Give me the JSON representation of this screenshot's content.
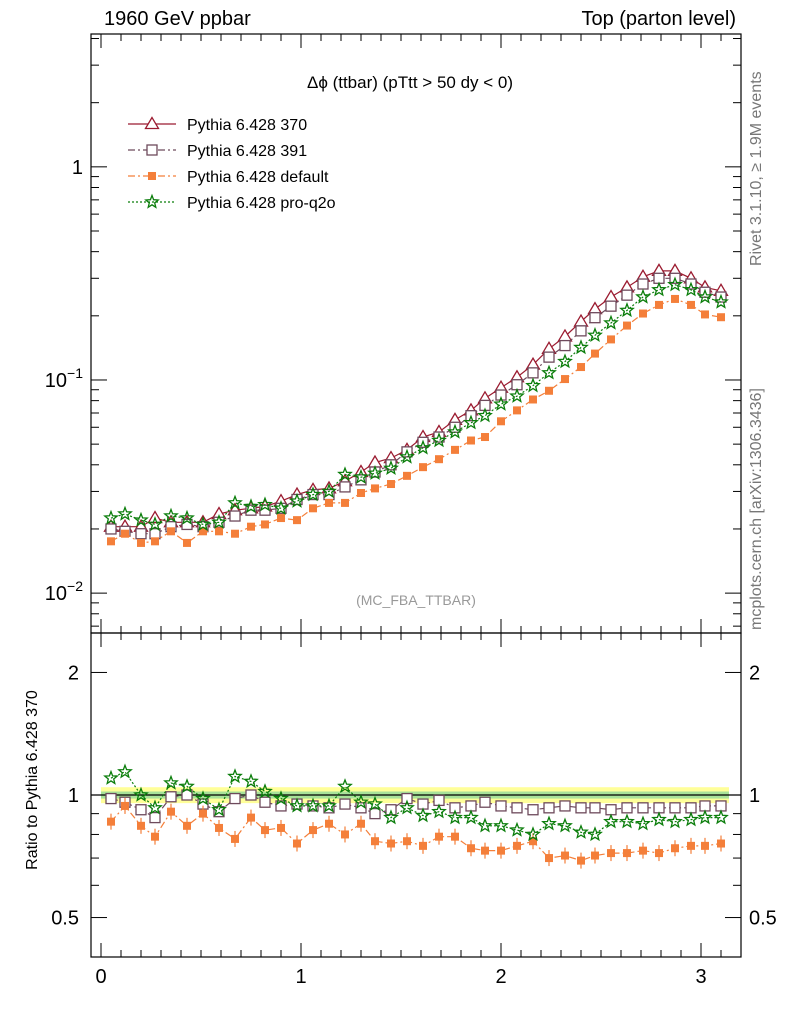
{
  "header": {
    "left": "1960 GeV ppbar",
    "right": "Top (parton level)"
  },
  "side_labels": {
    "rivet": "Rivet 3.1.10, ≥ 1.9M events",
    "mcplots": "mcplots.cern.ch [arXiv:1306.3436]"
  },
  "chart_data": [
    {
      "type": "line",
      "panel": "main",
      "title": "Δϕ (ttbar) (pTtt > 50 dy < 0)",
      "watermark": "(MC_FBA_TTBAR)",
      "xlim": [
        -0.05,
        3.2
      ],
      "ylim": [
        0.0065,
        4.2
      ],
      "yscale": "log",
      "xticks": [
        "0",
        "1",
        "2",
        "3"
      ],
      "yticks": [
        "10^-2",
        "10^-1",
        "1"
      ],
      "legend_position": "top-left",
      "x": [
        0.05,
        0.12,
        0.2,
        0.27,
        0.35,
        0.43,
        0.51,
        0.59,
        0.67,
        0.75,
        0.82,
        0.9,
        0.98,
        1.06,
        1.14,
        1.22,
        1.3,
        1.37,
        1.45,
        1.53,
        1.61,
        1.69,
        1.77,
        1.85,
        1.92,
        2.0,
        2.08,
        2.16,
        2.24,
        2.32,
        2.4,
        2.47,
        2.55,
        2.63,
        2.71,
        2.79,
        2.87,
        2.95,
        3.02,
        3.1
      ],
      "series": [
        {
          "name": "Pythia 6.428 370",
          "color": "#9b1b30",
          "marker": "triangle-open",
          "dash": "solid",
          "values": [
            0.0205,
            0.0205,
            0.0205,
            0.0225,
            0.0215,
            0.0215,
            0.0215,
            0.0235,
            0.0245,
            0.025,
            0.0255,
            0.027,
            0.029,
            0.0305,
            0.031,
            0.0335,
            0.037,
            0.041,
            0.043,
            0.047,
            0.054,
            0.057,
            0.065,
            0.072,
            0.082,
            0.092,
            0.103,
            0.118,
            0.14,
            0.16,
            0.188,
            0.215,
            0.245,
            0.272,
            0.305,
            0.325,
            0.325,
            0.3,
            0.272,
            0.262
          ]
        },
        {
          "name": "Pythia 6.428 391",
          "color": "#6e4a5c",
          "marker": "square-open",
          "dash": "dashdot",
          "values": [
            0.02,
            0.0195,
            0.019,
            0.019,
            0.0205,
            0.021,
            0.0205,
            0.0215,
            0.023,
            0.0245,
            0.0245,
            0.025,
            0.0275,
            0.029,
            0.029,
            0.0315,
            0.034,
            0.037,
            0.04,
            0.046,
            0.051,
            0.054,
            0.06,
            0.068,
            0.076,
            0.085,
            0.095,
            0.108,
            0.128,
            0.145,
            0.17,
            0.196,
            0.222,
            0.25,
            0.282,
            0.3,
            0.3,
            0.282,
            0.258,
            0.245
          ]
        },
        {
          "name": "Pythia 6.428 default",
          "color": "#f47f3a",
          "marker": "square-filled",
          "dash": "dashdot",
          "values": [
            0.0175,
            0.019,
            0.0172,
            0.0175,
            0.0195,
            0.0172,
            0.0195,
            0.0195,
            0.019,
            0.0205,
            0.021,
            0.0225,
            0.022,
            0.025,
            0.0265,
            0.0265,
            0.0295,
            0.031,
            0.0325,
            0.0355,
            0.039,
            0.0425,
            0.047,
            0.052,
            0.054,
            0.064,
            0.072,
            0.081,
            0.089,
            0.101,
            0.115,
            0.133,
            0.155,
            0.18,
            0.205,
            0.225,
            0.24,
            0.225,
            0.203,
            0.197
          ]
        },
        {
          "name": "Pythia 6.428 pro-q2o",
          "color": "#0a7d0a",
          "marker": "star",
          "dash": "dotted",
          "values": [
            0.0225,
            0.0235,
            0.022,
            0.021,
            0.023,
            0.0225,
            0.021,
            0.0215,
            0.0265,
            0.0255,
            0.026,
            0.025,
            0.027,
            0.029,
            0.03,
            0.036,
            0.035,
            0.0365,
            0.0385,
            0.0435,
            0.048,
            0.052,
            0.057,
            0.063,
            0.068,
            0.077,
            0.084,
            0.094,
            0.108,
            0.122,
            0.142,
            0.162,
            0.185,
            0.212,
            0.245,
            0.265,
            0.28,
            0.265,
            0.245,
            0.232
          ]
        }
      ]
    },
    {
      "type": "line",
      "panel": "ratio",
      "ylabel": "Ratio to Pythia 6.428 370",
      "xlim": [
        -0.05,
        3.2
      ],
      "ylim": [
        0.4,
        2.5
      ],
      "yscale": "log",
      "xticks": [
        "0",
        "1",
        "2",
        "3"
      ],
      "yticks": [
        "0.5",
        "1",
        "2"
      ],
      "band": {
        "green_halfwidth": 0.02,
        "yellow_halfwidth": 0.045
      },
      "x": [
        0.05,
        0.12,
        0.2,
        0.27,
        0.35,
        0.43,
        0.51,
        0.59,
        0.67,
        0.75,
        0.82,
        0.9,
        0.98,
        1.06,
        1.14,
        1.22,
        1.3,
        1.37,
        1.45,
        1.53,
        1.61,
        1.69,
        1.77,
        1.85,
        1.92,
        2.0,
        2.08,
        2.16,
        2.24,
        2.32,
        2.4,
        2.47,
        2.55,
        2.63,
        2.71,
        2.79,
        2.87,
        2.95,
        3.02,
        3.1
      ],
      "series": [
        {
          "name": "Pythia 6.428 391",
          "color": "#6e4a5c",
          "marker": "square-open",
          "dash": "dashdot",
          "values": [
            0.98,
            0.96,
            0.92,
            0.88,
            0.99,
            1.0,
            0.95,
            0.91,
            0.98,
            1.0,
            0.96,
            0.94,
            0.95,
            0.94,
            0.93,
            0.95,
            0.93,
            0.9,
            0.92,
            0.98,
            0.95,
            0.97,
            0.93,
            0.94,
            0.96,
            0.94,
            0.93,
            0.92,
            0.93,
            0.94,
            0.93,
            0.93,
            0.92,
            0.93,
            0.93,
            0.93,
            0.93,
            0.93,
            0.94,
            0.94
          ]
        },
        {
          "name": "Pythia 6.428 default",
          "color": "#f47f3a",
          "marker": "square-filled",
          "dash": "dashdot",
          "values": [
            0.86,
            0.94,
            0.84,
            0.79,
            0.91,
            0.84,
            0.9,
            0.83,
            0.78,
            0.88,
            0.82,
            0.83,
            0.76,
            0.82,
            0.85,
            0.8,
            0.85,
            0.77,
            0.76,
            0.77,
            0.75,
            0.79,
            0.79,
            0.74,
            0.73,
            0.73,
            0.75,
            0.77,
            0.7,
            0.71,
            0.69,
            0.71,
            0.72,
            0.72,
            0.73,
            0.72,
            0.74,
            0.75,
            0.75,
            0.76
          ]
        },
        {
          "name": "Pythia 6.428 pro-q2o",
          "color": "#0a7d0a",
          "marker": "star",
          "dash": "dotted",
          "values": [
            1.1,
            1.14,
            1.0,
            0.93,
            1.07,
            1.05,
            0.98,
            0.92,
            1.11,
            1.08,
            1.02,
            0.98,
            0.94,
            0.94,
            0.94,
            1.05,
            0.96,
            0.95,
            0.88,
            0.93,
            0.89,
            0.91,
            0.88,
            0.88,
            0.84,
            0.84,
            0.82,
            0.8,
            0.85,
            0.84,
            0.81,
            0.8,
            0.86,
            0.86,
            0.85,
            0.87,
            0.86,
            0.87,
            0.88,
            0.88
          ]
        }
      ]
    }
  ]
}
